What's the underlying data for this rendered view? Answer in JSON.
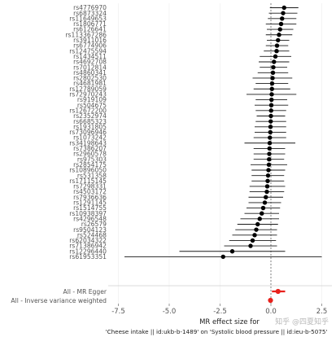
{
  "chart_data": {
    "type": "scatter",
    "subtype": "forest",
    "xlabel": "MR effect size for",
    "subtitle": "'Cheese intake || id:ukb-b-1489' on 'Systolic blood pressure || id:ieu-b-5075'",
    "xlim": [
      -8,
      3
    ],
    "x_ticks": [
      -7.5,
      -5.0,
      -2.5,
      0.0,
      2.5
    ],
    "x_tick_labels": [
      "-7.5",
      "-5.0",
      "-2.5",
      "0.0",
      "2.5"
    ],
    "zero_line": true,
    "grid": true,
    "snps": [
      {
        "label": "rs4776970",
        "b": 0.65,
        "lo": -0.05,
        "hi": 1.35
      },
      {
        "label": "rs6873324",
        "b": 0.6,
        "lo": -0.1,
        "hi": 1.3
      },
      {
        "label": "rs11649653",
        "b": 0.55,
        "lo": -0.15,
        "hi": 1.25
      },
      {
        "label": "rs1806771",
        "b": 0.5,
        "lo": -0.25,
        "hi": 1.25
      },
      {
        "label": "rs6126641",
        "b": 0.45,
        "lo": -0.2,
        "hi": 1.1
      },
      {
        "label": "rs113367286",
        "b": 0.4,
        "lo": -0.25,
        "hi": 1.05
      },
      {
        "label": "rs3911016",
        "b": 0.35,
        "lo": -0.2,
        "hi": 0.9
      },
      {
        "label": "rs6774906",
        "b": 0.3,
        "lo": -0.25,
        "hi": 0.85
      },
      {
        "label": "rs12475594",
        "b": 0.28,
        "lo": -0.35,
        "hi": 0.9
      },
      {
        "label": "rs1434511",
        "b": 0.22,
        "lo": -0.55,
        "hi": 1.0
      },
      {
        "label": "rs4692708",
        "b": 0.15,
        "lo": -0.6,
        "hi": 0.9
      },
      {
        "label": "rs7012814",
        "b": 0.12,
        "lo": -0.55,
        "hi": 0.8
      },
      {
        "label": "rs4860341",
        "b": 0.1,
        "lo": -0.65,
        "hi": 0.85
      },
      {
        "label": "rs2802530",
        "b": 0.08,
        "lo": -0.9,
        "hi": 1.05
      },
      {
        "label": "rs4681981",
        "b": 0.06,
        "lo": -0.75,
        "hi": 0.85
      },
      {
        "label": "rs12789059",
        "b": 0.05,
        "lo": -0.85,
        "hi": 0.95
      },
      {
        "label": "rs72970243",
        "b": 0.04,
        "lo": -1.2,
        "hi": 1.25
      },
      {
        "label": "rs919109",
        "b": 0.03,
        "lo": -0.75,
        "hi": 0.8
      },
      {
        "label": "rs504675",
        "b": 0.02,
        "lo": -0.8,
        "hi": 0.85
      },
      {
        "label": "rs12672200",
        "b": 0.01,
        "lo": -0.75,
        "hi": 0.75
      },
      {
        "label": "rs2352974",
        "b": 0.0,
        "lo": -0.7,
        "hi": 0.7
      },
      {
        "label": "rs6685323",
        "b": -0.01,
        "lo": -0.75,
        "hi": 0.75
      },
      {
        "label": "rs1931805",
        "b": -0.02,
        "lo": -0.8,
        "hi": 0.75
      },
      {
        "label": "rs73096946",
        "b": -0.03,
        "lo": -0.8,
        "hi": 0.75
      },
      {
        "label": "rs1073242",
        "b": -0.05,
        "lo": -0.85,
        "hi": 0.75
      },
      {
        "label": "rs34198643",
        "b": -0.06,
        "lo": -1.3,
        "hi": 1.2
      },
      {
        "label": "rs7386207",
        "b": -0.07,
        "lo": -0.85,
        "hi": 0.7
      },
      {
        "label": "rs2960578",
        "b": -0.08,
        "lo": -0.85,
        "hi": 0.7
      },
      {
        "label": "rs975303",
        "b": -0.09,
        "lo": -0.85,
        "hi": 0.65
      },
      {
        "label": "rs2854175",
        "b": -0.1,
        "lo": -1.0,
        "hi": 0.8
      },
      {
        "label": "rs10896050",
        "b": -0.12,
        "lo": -0.95,
        "hi": 0.7
      },
      {
        "label": "rs531358",
        "b": -0.14,
        "lo": -0.95,
        "hi": 0.65
      },
      {
        "label": "rs17115145",
        "b": -0.16,
        "lo": -0.95,
        "hi": 0.65
      },
      {
        "label": "rs7298331",
        "b": -0.18,
        "lo": -1.05,
        "hi": 0.7
      },
      {
        "label": "rs4503172",
        "b": -0.2,
        "lo": -1.05,
        "hi": 0.65
      },
      {
        "label": "rs7936636",
        "b": -0.25,
        "lo": -1.1,
        "hi": 0.6
      },
      {
        "label": "rs1291145",
        "b": -0.3,
        "lo": -1.1,
        "hi": 0.5
      },
      {
        "label": "rs1514755",
        "b": -0.38,
        "lo": -1.2,
        "hi": 0.45
      },
      {
        "label": "rs10938397",
        "b": -0.45,
        "lo": -1.3,
        "hi": 0.4
      },
      {
        "label": "rs4296548",
        "b": -0.55,
        "lo": -1.5,
        "hi": 0.4
      },
      {
        "label": "rs26579",
        "b": -0.65,
        "lo": -1.65,
        "hi": 0.35
      },
      {
        "label": "rs9504123",
        "b": -0.72,
        "lo": -1.75,
        "hi": 0.3
      },
      {
        "label": "rs524468",
        "b": -0.8,
        "lo": -1.9,
        "hi": 0.3
      },
      {
        "label": "rs62034322",
        "b": -0.9,
        "lo": -2.05,
        "hi": 0.25
      },
      {
        "label": "rs71386942",
        "b": -1.0,
        "lo": -2.3,
        "hi": 0.3
      },
      {
        "label": "rs12296440",
        "b": -1.9,
        "lo": -4.5,
        "hi": 0.7
      },
      {
        "label": "rs61953351",
        "b": -2.35,
        "lo": -7.2,
        "hi": 2.5
      }
    ],
    "summary": [
      {
        "label": "All - MR Egger",
        "b": 0.35,
        "lo": 0.05,
        "hi": 0.7,
        "color": "#e8211c"
      },
      {
        "label": "All - Inverse variance weighted",
        "b": -0.02,
        "lo": -0.1,
        "hi": 0.06,
        "color": "#e8211c"
      }
    ],
    "point_color": "#000000",
    "ci_color": "#1a1a1a",
    "zero_line_color": "#666666",
    "grid_color": "#ececec"
  },
  "watermark": "知乎 @四夏知乎"
}
